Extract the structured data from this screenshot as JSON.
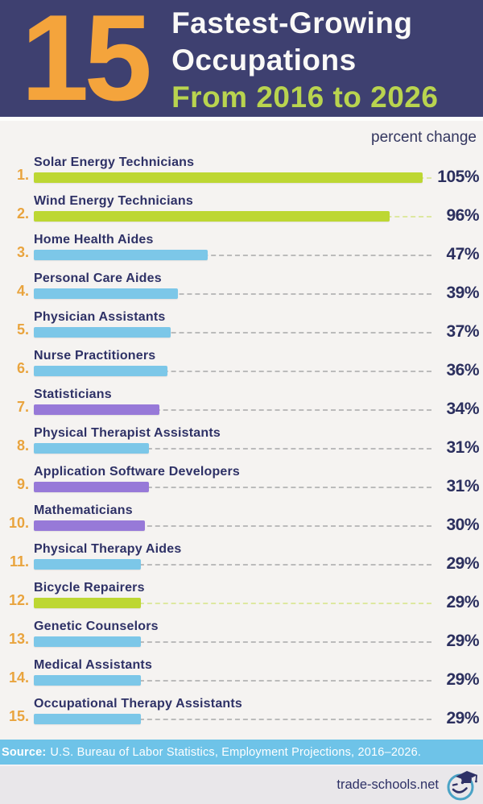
{
  "header": {
    "big_number": "15",
    "title_line1": "Fastest-Growing",
    "title_line2": "Occupations",
    "title_line3": "From 2016 to 2026",
    "colors": {
      "background": "#3e4070",
      "big_number": "#f4a43c",
      "title": "#faf9f7",
      "subtitle_accent": "#b9d44f"
    }
  },
  "chart": {
    "axis_label": "percent change"
  },
  "chart_data": {
    "type": "bar",
    "orientation": "horizontal",
    "title": "15 Fastest-Growing Occupations From 2016 to 2026",
    "value_axis_label": "percent change",
    "xlim": [
      0,
      105
    ],
    "grid": false,
    "categories": [
      "Solar Energy Technicians",
      "Wind Energy Technicians",
      "Home Health Aides",
      "Personal Care Aides",
      "Physician Assistants",
      "Nurse Practitioners",
      "Statisticians",
      "Physical Therapist Assistants",
      "Application Software Developers",
      "Mathematicians",
      "Physical Therapy Aides",
      "Bicycle Repairers",
      "Genetic Counselors",
      "Medical Assistants",
      "Occupational Therapy Assistants"
    ],
    "values": [
      105,
      96,
      47,
      39,
      37,
      36,
      34,
      31,
      31,
      30,
      29,
      29,
      29,
      29,
      29
    ],
    "bar_colors": [
      "#bdd733",
      "#bdd733",
      "#7cc7e8",
      "#7cc7e8",
      "#7cc7e8",
      "#7cc7e8",
      "#9779d8",
      "#7cc7e8",
      "#9779d8",
      "#9779d8",
      "#7cc7e8",
      "#bdd733",
      "#7cc7e8",
      "#7cc7e8",
      "#7cc7e8"
    ]
  },
  "rows": [
    {
      "rank": "1.",
      "label": "Solar Energy Technicians",
      "value": 105,
      "value_label": "105%",
      "color": "#bdd733",
      "dash_color": "#dde8a0"
    },
    {
      "rank": "2.",
      "label": "Wind Energy Technicians",
      "value": 96,
      "value_label": "96%",
      "color": "#bdd733",
      "dash_color": "#dde8a0"
    },
    {
      "rank": "3.",
      "label": "Home Health Aides",
      "value": 47,
      "value_label": "47%",
      "color": "#7cc7e8",
      "dash_color": "#bbbbbb"
    },
    {
      "rank": "4.",
      "label": "Personal Care Aides",
      "value": 39,
      "value_label": "39%",
      "color": "#7cc7e8",
      "dash_color": "#bbbbbb"
    },
    {
      "rank": "5.",
      "label": "Physician Assistants",
      "value": 37,
      "value_label": "37%",
      "color": "#7cc7e8",
      "dash_color": "#bbbbbb"
    },
    {
      "rank": "6.",
      "label": "Nurse Practitioners",
      "value": 36,
      "value_label": "36%",
      "color": "#7cc7e8",
      "dash_color": "#bbbbbb"
    },
    {
      "rank": "7.",
      "label": "Statisticians",
      "value": 34,
      "value_label": "34%",
      "color": "#9779d8",
      "dash_color": "#bbbbbb"
    },
    {
      "rank": "8.",
      "label": "Physical Therapist Assistants",
      "value": 31,
      "value_label": "31%",
      "color": "#7cc7e8",
      "dash_color": "#bbbbbb"
    },
    {
      "rank": "9.",
      "label": "Application Software Developers",
      "value": 31,
      "value_label": "31%",
      "color": "#9779d8",
      "dash_color": "#bbbbbb"
    },
    {
      "rank": "10.",
      "label": "Mathematicians",
      "value": 30,
      "value_label": "30%",
      "color": "#9779d8",
      "dash_color": "#bbbbbb"
    },
    {
      "rank": "11.",
      "label": "Physical Therapy Aides",
      "value": 29,
      "value_label": "29%",
      "color": "#7cc7e8",
      "dash_color": "#bbbbbb"
    },
    {
      "rank": "12.",
      "label": "Bicycle Repairers",
      "value": 29,
      "value_label": "29%",
      "color": "#bdd733",
      "dash_color": "#dde8a0"
    },
    {
      "rank": "13.",
      "label": "Genetic Counselors",
      "value": 29,
      "value_label": "29%",
      "color": "#7cc7e8",
      "dash_color": "#bbbbbb"
    },
    {
      "rank": "14.",
      "label": "Medical Assistants",
      "value": 29,
      "value_label": "29%",
      "color": "#7cc7e8",
      "dash_color": "#bbbbbb"
    },
    {
      "rank": "15.",
      "label": "Occupational Therapy Assistants",
      "value": 29,
      "value_label": "29%",
      "color": "#7cc7e8",
      "dash_color": "#bbbbbb"
    }
  ],
  "source_band": {
    "prefix": "Source:",
    "text": "U.S. Bureau of Labor Statistics, Employment Projections, 2016–2026.",
    "background": "#6ec3e8"
  },
  "footer": {
    "site": "trade-schools.net"
  }
}
